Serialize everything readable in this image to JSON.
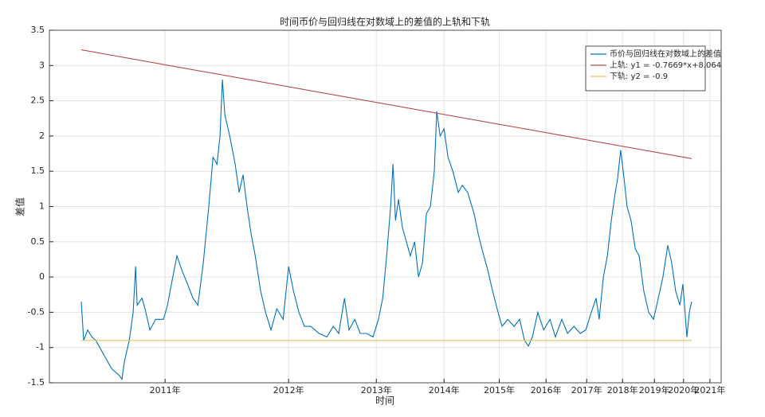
{
  "chart_data": {
    "type": "line",
    "title": "时间币价与回归线在对数域上的差值的上轨和下轨",
    "x_label": "时间",
    "y_label": "差值",
    "xlim": [
      6.209,
      8.422
    ],
    "ylim": [
      -1.5,
      3.5
    ],
    "xticks": [
      {
        "value": 6.59,
        "label": "2011年"
      },
      {
        "value": 6.997,
        "label": "2012年"
      },
      {
        "value": 7.286,
        "label": "2013年"
      },
      {
        "value": 7.509,
        "label": "2014年"
      },
      {
        "value": 7.691,
        "label": "2015年"
      },
      {
        "value": 7.845,
        "label": "2016年"
      },
      {
        "value": 7.979,
        "label": "2017年"
      },
      {
        "value": 8.097,
        "label": "2018年"
      },
      {
        "value": 8.202,
        "label": "2019年"
      },
      {
        "value": 8.298,
        "label": "2020年"
      },
      {
        "value": 8.385,
        "label": "2021年"
      }
    ],
    "yticks": [
      -1.5,
      -1,
      -0.5,
      0,
      0.5,
      1,
      1.5,
      2,
      2.5,
      3,
      3.5
    ],
    "grid": true,
    "legend": "top-right",
    "series": [
      {
        "name": "币价与回归线在对数域上的差值",
        "color": "#0072bd",
        "x": [
          6.314,
          6.322,
          6.335,
          6.349,
          6.362,
          6.388,
          6.414,
          6.44,
          6.448,
          6.456,
          6.472,
          6.485,
          6.493,
          6.498,
          6.514,
          6.524,
          6.54,
          6.559,
          6.585,
          6.598,
          6.611,
          6.629,
          6.645,
          6.664,
          6.682,
          6.698,
          6.716,
          6.734,
          6.748,
          6.761,
          6.771,
          6.779,
          6.787,
          6.803,
          6.821,
          6.834,
          6.847,
          6.86,
          6.874,
          6.887,
          6.905,
          6.921,
          6.939,
          6.958,
          6.979,
          6.997,
          7.013,
          7.031,
          7.049,
          7.07,
          7.097,
          7.123,
          7.144,
          7.162,
          7.181,
          7.196,
          7.215,
          7.233,
          7.254,
          7.275,
          7.293,
          7.307,
          7.32,
          7.333,
          7.341,
          7.349,
          7.359,
          7.372,
          7.385,
          7.398,
          7.412,
          7.425,
          7.438,
          7.451,
          7.464,
          7.477,
          7.485,
          7.496,
          7.509,
          7.522,
          7.538,
          7.556,
          7.569,
          7.587,
          7.608,
          7.622,
          7.64,
          7.653,
          7.669,
          7.687,
          7.7,
          7.719,
          7.74,
          7.758,
          7.774,
          7.787,
          7.8,
          7.818,
          7.837,
          7.858,
          7.876,
          7.897,
          7.916,
          7.937,
          7.958,
          7.976,
          7.994,
          8.01,
          8.02,
          8.034,
          8.047,
          8.06,
          8.073,
          8.081,
          8.091,
          8.102,
          8.112,
          8.125,
          8.139,
          8.152,
          8.167,
          8.183,
          8.199,
          8.215,
          8.23,
          8.246,
          8.259,
          8.272,
          8.286,
          8.296,
          8.309,
          8.317,
          8.325
        ],
        "values": [
          -0.35,
          -0.9,
          -0.75,
          -0.85,
          -0.9,
          -1.1,
          -1.3,
          -1.4,
          -1.45,
          -1.2,
          -0.9,
          -0.5,
          0.15,
          -0.4,
          -0.3,
          -0.45,
          -0.75,
          -0.6,
          -0.6,
          -0.4,
          -0.1,
          0.3,
          0.1,
          -0.1,
          -0.3,
          -0.4,
          0.2,
          1.0,
          1.7,
          1.6,
          2.0,
          2.8,
          2.3,
          2.0,
          1.6,
          1.2,
          1.45,
          1.0,
          0.6,
          0.3,
          -0.2,
          -0.5,
          -0.75,
          -0.45,
          -0.6,
          0.15,
          -0.2,
          -0.5,
          -0.7,
          -0.7,
          -0.8,
          -0.85,
          -0.7,
          -0.8,
          -0.3,
          -0.75,
          -0.6,
          -0.8,
          -0.8,
          -0.85,
          -0.6,
          -0.3,
          0.3,
          1.0,
          1.6,
          0.8,
          1.1,
          0.7,
          0.5,
          0.3,
          0.5,
          0.0,
          0.2,
          0.9,
          1.0,
          1.5,
          2.35,
          2.0,
          2.1,
          1.7,
          1.5,
          1.2,
          1.3,
          1.2,
          0.9,
          0.6,
          0.3,
          0.1,
          -0.2,
          -0.5,
          -0.7,
          -0.6,
          -0.7,
          -0.6,
          -0.9,
          -0.98,
          -0.85,
          -0.5,
          -0.75,
          -0.6,
          -0.85,
          -0.6,
          -0.8,
          -0.7,
          -0.8,
          -0.75,
          -0.5,
          -0.3,
          -0.6,
          0.0,
          0.3,
          0.8,
          1.2,
          1.4,
          1.8,
          1.4,
          1.0,
          0.8,
          0.4,
          0.3,
          -0.2,
          -0.5,
          -0.6,
          -0.3,
          0.0,
          0.45,
          0.2,
          -0.2,
          -0.4,
          -0.1,
          -0.85,
          -0.5,
          -0.35
        ]
      },
      {
        "name": "上轨: y1 = -0.7669*x+8.064",
        "color": "#b94a4a",
        "x": [
          6.314,
          8.325
        ],
        "values": [
          3.222,
          1.68
        ]
      },
      {
        "name": "下轨: y2 = -0.9",
        "color": "#e3c165",
        "x": [
          6.314,
          8.325
        ],
        "values": [
          -0.9,
          -0.9
        ]
      }
    ]
  }
}
